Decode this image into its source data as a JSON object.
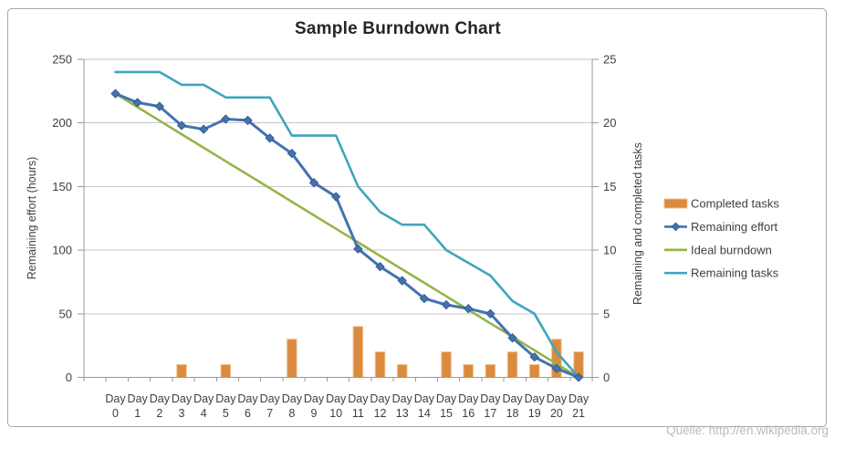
{
  "chart_data": {
    "type": "line",
    "title": "Sample Burndown Chart",
    "source_note": "Quelle: http://en.wikipedia.org",
    "categories": [
      "Day 0",
      "Day 1",
      "Day 2",
      "Day 3",
      "Day 4",
      "Day 5",
      "Day 6",
      "Day 7",
      "Day 8",
      "Day 9",
      "Day 10",
      "Day 11",
      "Day 12",
      "Day 13",
      "Day 14",
      "Day 15",
      "Day 16",
      "Day 17",
      "Day 18",
      "Day 19",
      "Day 20",
      "Day 21"
    ],
    "left_axis": {
      "title": "Remaining effort (hours)",
      "min": 0,
      "max": 250,
      "step": 50,
      "ticks": [
        0,
        50,
        100,
        150,
        200,
        250
      ]
    },
    "right_axis": {
      "title": "Remaining and completed tasks",
      "min": 0,
      "max": 25,
      "step": 5,
      "ticks": [
        0,
        5,
        10,
        15,
        20,
        25
      ]
    },
    "grid": true,
    "legend_position": "right",
    "series": [
      {
        "name": "Completed tasks",
        "type": "bar",
        "axis": "right",
        "color": "#db8a3e",
        "edge_color": "#ecc190",
        "values": [
          0,
          0,
          0,
          1,
          0,
          1,
          0,
          0,
          3,
          0,
          0,
          4,
          2,
          1,
          0,
          2,
          1,
          1,
          2,
          1,
          3,
          2
        ]
      },
      {
        "name": "Remaining effort",
        "type": "line",
        "marker": "diamond",
        "axis": "left",
        "color": "#4472b0",
        "values": [
          223,
          216,
          213,
          198,
          195,
          203,
          202,
          188,
          176,
          153,
          142,
          101,
          87,
          76,
          62,
          57,
          54,
          50,
          31,
          16,
          7,
          0
        ]
      },
      {
        "name": "Ideal burndown",
        "type": "line",
        "marker": "none",
        "axis": "left",
        "color": "#94b54a",
        "values": [
          223,
          212.4,
          201.8,
          191.1,
          180.5,
          169.9,
          159.3,
          148.7,
          138.0,
          127.4,
          116.8,
          106.2,
          95.5,
          84.9,
          74.3,
          63.7,
          53.1,
          42.5,
          31.9,
          21.2,
          10.6,
          0
        ]
      },
      {
        "name": "Remaining tasks",
        "type": "line",
        "marker": "none",
        "axis": "right",
        "color": "#41a4bc",
        "values": [
          24,
          24,
          24,
          23,
          23,
          22,
          22,
          22,
          19,
          19,
          19,
          15,
          13,
          12,
          12,
          10,
          9,
          8,
          6,
          5,
          2,
          0
        ]
      }
    ]
  },
  "colors": {
    "grid": "#c6c6c6",
    "axis": "#9a9a9a",
    "tick_text": "#3f3f3f",
    "axis_title_text": "#3f3f3f",
    "legend_text": "#3f3f3f",
    "title_text": "#262626",
    "frame_border": "#a6a6a6",
    "watermark": "#b9bac8",
    "background": "#ffffff"
  }
}
